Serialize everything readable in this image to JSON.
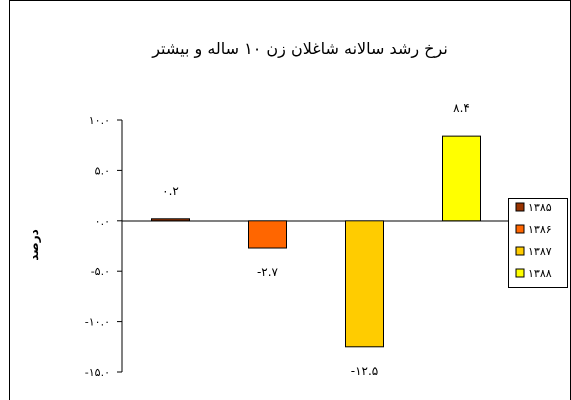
{
  "chart_data": {
    "type": "bar",
    "title": "نرخ رشد سالانه شاغلان زن ۱۰ ساله و بیشتر",
    "ylabel": "درصد",
    "xlabel": "",
    "ylim": [
      -15,
      10
    ],
    "yticks": [
      10,
      5,
      0,
      -5,
      -10,
      -15
    ],
    "ytick_labels": [
      "۱۰.۰",
      "۵.۰",
      "۰.۰",
      "-۵.۰",
      "-۱۰.۰",
      "-۱۵.۰"
    ],
    "grid": false,
    "legend_position": "right",
    "categories": [
      "۱۳۸۵",
      "۱۳۸۶",
      "۱۳۸۷",
      "۱۳۸۸"
    ],
    "values": [
      0.2,
      -2.7,
      -12.5,
      8.4
    ],
    "data_labels": [
      "۰.۲",
      "-۲.۷",
      "-۱۲.۵",
      "۸.۴"
    ],
    "series": [
      {
        "name": "۱۳۸۵",
        "value": 0.2,
        "color": "#993300"
      },
      {
        "name": "۱۳۸۶",
        "value": -2.7,
        "color": "#FF6600"
      },
      {
        "name": "۱۳۸۷",
        "value": -12.5,
        "color": "#FFCC00"
      },
      {
        "name": "۱۳۸۸",
        "value": 8.4,
        "color": "#FFFF00"
      }
    ]
  }
}
